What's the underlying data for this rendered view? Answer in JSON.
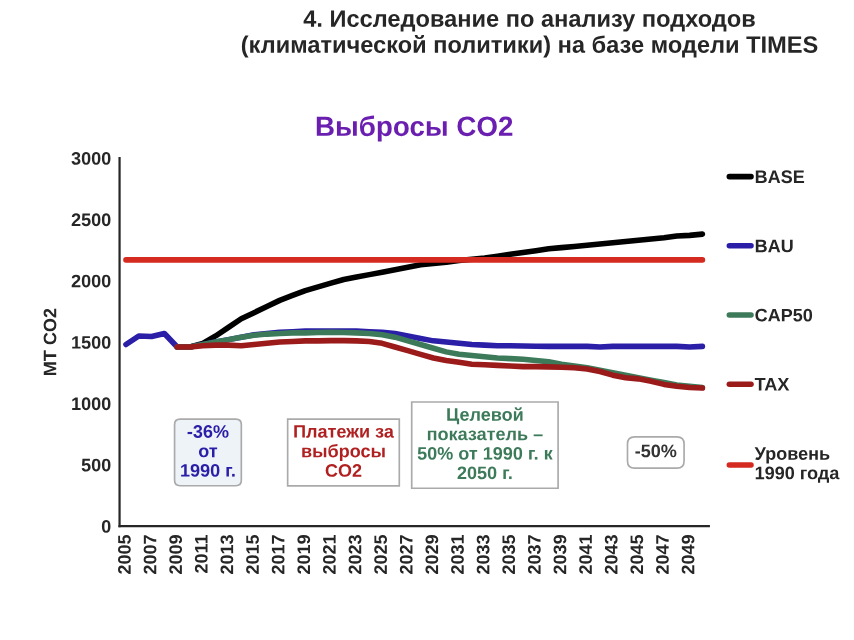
{
  "chart_data": {
    "type": "line",
    "title": "4. Исследование по анализу подходов\n(климатической политики) на базе модели TIMES",
    "subtitle": "Выбросы CO2",
    "ylabel": "MT CO2",
    "categories": [
      "2005",
      null,
      "2007",
      null,
      "2009",
      null,
      "2011",
      null,
      "2013",
      null,
      "2015",
      null,
      "2017",
      null,
      "2019",
      null,
      "2021",
      null,
      "2023",
      null,
      "2025",
      null,
      "2027",
      null,
      "2029",
      null,
      "2031",
      null,
      "2033",
      null,
      "2035",
      null,
      "2037",
      null,
      "2039",
      null,
      "2041",
      null,
      "2043",
      null,
      "2045",
      null,
      "2047",
      null,
      "2049",
      null
    ],
    "series": [
      {
        "name": "BASE",
        "color": "#000000",
        "values": [
          null,
          null,
          null,
          null,
          1460,
          1460,
          1490,
          1550,
          1620,
          1690,
          1740,
          1790,
          1840,
          1880,
          1920,
          1950,
          1980,
          2010,
          2030,
          2050,
          2070,
          2090,
          2110,
          2130,
          2140,
          2150,
          2165,
          2175,
          2185,
          2200,
          2215,
          2230,
          2245,
          2260,
          2270,
          2280,
          2290,
          2300,
          2310,
          2320,
          2330,
          2340,
          2350,
          2365,
          2370,
          2380
        ]
      },
      {
        "name": "BAU",
        "color": "#2b1fa8",
        "values": [
          1480,
          1550,
          1545,
          1570,
          1460,
          1460,
          1480,
          1500,
          1520,
          1540,
          1560,
          1570,
          1580,
          1585,
          1590,
          1590,
          1590,
          1590,
          1590,
          1585,
          1580,
          1570,
          1550,
          1530,
          1510,
          1500,
          1490,
          1480,
          1475,
          1470,
          1470,
          1468,
          1466,
          1465,
          1465,
          1465,
          1465,
          1460,
          1465,
          1465,
          1465,
          1465,
          1465,
          1465,
          1460,
          1465
        ]
      },
      {
        "name": "CAP50",
        "color": "#3d7a5a",
        "values": [
          null,
          null,
          null,
          null,
          1460,
          1460,
          1480,
          1500,
          1520,
          1540,
          1555,
          1565,
          1570,
          1575,
          1575,
          1578,
          1580,
          1578,
          1575,
          1570,
          1560,
          1540,
          1510,
          1480,
          1450,
          1420,
          1400,
          1390,
          1380,
          1370,
          1365,
          1360,
          1350,
          1340,
          1320,
          1305,
          1290,
          1270,
          1250,
          1230,
          1210,
          1190,
          1170,
          1150,
          1140,
          1130
        ]
      },
      {
        "name": "TAX",
        "color": "#9b1b1b",
        "values": [
          null,
          null,
          null,
          null,
          1460,
          1460,
          1470,
          1475,
          1475,
          1470,
          1480,
          1490,
          1500,
          1505,
          1510,
          1510,
          1512,
          1512,
          1510,
          1505,
          1490,
          1460,
          1430,
          1400,
          1370,
          1350,
          1335,
          1320,
          1315,
          1310,
          1305,
          1300,
          1300,
          1298,
          1295,
          1290,
          1280,
          1260,
          1230,
          1210,
          1200,
          1180,
          1155,
          1140,
          1130,
          1125
        ]
      },
      {
        "name": "Уровень\n1990 года",
        "color": "#d42a1f",
        "values": [
          2170,
          2170,
          2170,
          2170,
          2170,
          2170,
          2170,
          2170,
          2170,
          2170,
          2170,
          2170,
          2170,
          2170,
          2170,
          2170,
          2170,
          2170,
          2170,
          2170,
          2170,
          2170,
          2170,
          2170,
          2170,
          2170,
          2170,
          2170,
          2170,
          2170,
          2170,
          2170,
          2170,
          2170,
          2170,
          2170,
          2170,
          2170,
          2170,
          2170,
          2170,
          2170,
          2170,
          2170,
          2170,
          2170
        ]
      }
    ],
    "ylim": [
      0,
      3000
    ],
    "yticks": [
      0,
      500,
      1000,
      1500,
      2000,
      2500,
      3000
    ],
    "grid": false,
    "legend": "right",
    "marker": "none",
    "line_style": "solid",
    "annotations": [
      "-36%\nот\n1990 г.",
      "Платежи за\nвыбросы\nCO2",
      "Целевой\nпоказатель –\n50% от 1990 г. к\n2050 г.",
      "-50%"
    ]
  }
}
